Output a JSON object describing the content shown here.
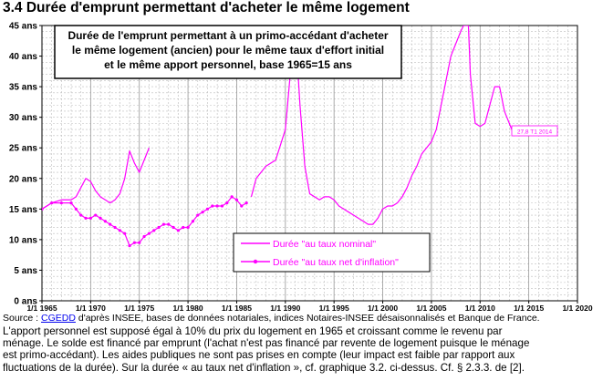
{
  "title": "3.4 Durée d'emprunt permettant d'acheter le même logement",
  "chart_data": {
    "type": "line",
    "title_box": [
      "Durée de l'emprunt permettant à un primo-accédant d'acheter",
      "le même logement (ancien) pour le même taux d'effort initial",
      "et le même apport personnel, base 1965=15 ans"
    ],
    "ylim": [
      0,
      45
    ],
    "y_ticks": [
      0,
      5,
      10,
      15,
      20,
      25,
      30,
      35,
      40,
      45
    ],
    "y_tick_labels": [
      "0 ans",
      "5 ans",
      "10 ans",
      "15 ans",
      "20 ans",
      "25 ans",
      "30 ans",
      "35 ans",
      "40 ans",
      "45 ans"
    ],
    "xlim": [
      1965,
      2020
    ],
    "x_ticks": [
      1965,
      1970,
      1975,
      1980,
      1985,
      1990,
      1995,
      2000,
      2005,
      2010,
      2015,
      2020
    ],
    "x_tick_labels": [
      "1/1 1965",
      "1/1 1970",
      "1/1 1975",
      "1/1 1980",
      "1/1 1985",
      "1/1 1990",
      "1/1 1995",
      "1/1 2000",
      "1/1 2005",
      "1/1 2010",
      "1/1 2015",
      "1/1 2020"
    ],
    "grid": true,
    "legend_position": "lower-right",
    "colors": {
      "series": "#ff00ff",
      "grid": "#bdbdbd"
    },
    "annotation": "27,8 T1 2014",
    "series": [
      {
        "name": "Durée \"au taux nominal\"",
        "marker": "none",
        "segments": [
          {
            "x": [
              1965,
              1966,
              1967,
              1968,
              1968.5,
              1969,
              1969.5,
              1970,
              1970.5,
              1971,
              1971.5,
              1972,
              1972.5,
              1973,
              1973.5,
              1974,
              1974.5,
              1975,
              1975.5,
              1976
            ],
            "y": [
              15,
              16,
              16.5,
              16.5,
              17,
              18.5,
              20,
              19.5,
              18,
              17,
              16.5,
              16,
              16.5,
              17.5,
              20,
              24.5,
              22.5,
              21,
              23,
              25
            ]
          },
          {
            "x": [
              1986.5,
              1987,
              1988,
              1989,
              1990,
              1990.5,
              1991,
              1991.5,
              1992,
              1992.5,
              1993,
              1993.5,
              1994,
              1994.5,
              1995,
              1995.5,
              1996,
              1996.5,
              1997,
              1997.5,
              1998,
              1998.5,
              1999,
              1999.5,
              2000,
              2000.5,
              2001,
              2001.5,
              2002,
              2002.5,
              2003,
              2003.5,
              2004,
              2004.5,
              2005,
              2005.5,
              2006,
              2006.5,
              2007,
              2007.5,
              2008,
              2008.3,
              2008.8,
              2009,
              2009.5,
              2010,
              2010.5,
              2011,
              2011.5,
              2012,
              2012.5,
              2013,
              2013.5,
              2014
            ],
            "y": [
              17,
              20,
              22,
              23,
              28,
              37,
              45,
              32,
              22,
              17.5,
              17,
              16.5,
              17,
              17,
              16.5,
              15.5,
              15,
              14.5,
              14,
              13.5,
              13,
              12.5,
              12.5,
              13.5,
              15,
              15.5,
              15.5,
              16,
              17,
              18.5,
              20.5,
              22,
              24,
              25,
              26,
              28,
              32,
              36,
              40,
              42,
              44,
              45,
              45,
              37,
              29,
              28.5,
              29,
              32,
              35,
              35,
              31,
              29,
              27,
              27.8
            ]
          }
        ]
      },
      {
        "name": "Durée \"au taux net d'inflation\"",
        "marker": "dot",
        "segments": [
          {
            "x": [
              1965,
              1966,
              1967,
              1968,
              1968.5,
              1969,
              1969.5,
              1970,
              1970.5,
              1971,
              1971.5,
              1972,
              1972.5,
              1973,
              1973.5,
              1974,
              1974.5,
              1975,
              1975.5,
              1976,
              1976.5,
              1977,
              1977.5,
              1978,
              1978.5,
              1979,
              1979.5,
              1980,
              1980.5,
              1981,
              1981.5,
              1982,
              1982.5,
              1983,
              1983.5,
              1984,
              1984.5,
              1985,
              1985.5,
              1986
            ],
            "y": [
              15,
              16,
              16,
              16,
              15,
              14,
              13.5,
              13.5,
              14,
              13.5,
              13,
              12.5,
              12,
              11.5,
              11,
              9,
              9.5,
              9.5,
              10.5,
              11,
              11.5,
              12,
              12.5,
              12.5,
              12,
              11.5,
              12,
              12,
              13,
              14,
              14.5,
              15,
              15.5,
              15.5,
              15.5,
              16,
              17,
              16.5,
              15.5,
              16
            ]
          }
        ]
      }
    ]
  },
  "notes": {
    "source_prefix": "Source : ",
    "source_link": "CGEDD",
    "source_rest": " d'après INSEE, bases de données notariales, indices Notaires-INSEE désaisonnalisés et Banque de France.",
    "line1": "L'apport personnel est supposé égal à 10% du prix du logement en 1965 et croissant comme le revenu par",
    "line2": "ménage.  Le solde est financé par emprunt (l'achat n'est pas financé par revente de logement puisque le ménage",
    "line3": "est primo-accédant). Les aides publiques ne sont pas prises en compte (leur impact est faible par rapport aux",
    "line4": "fluctuations de la durée).  Sur la durée « au taux net d'inflation », cf. graphique 3.2. ci-dessus.  Cf. § 2.3.3. de [2]."
  }
}
